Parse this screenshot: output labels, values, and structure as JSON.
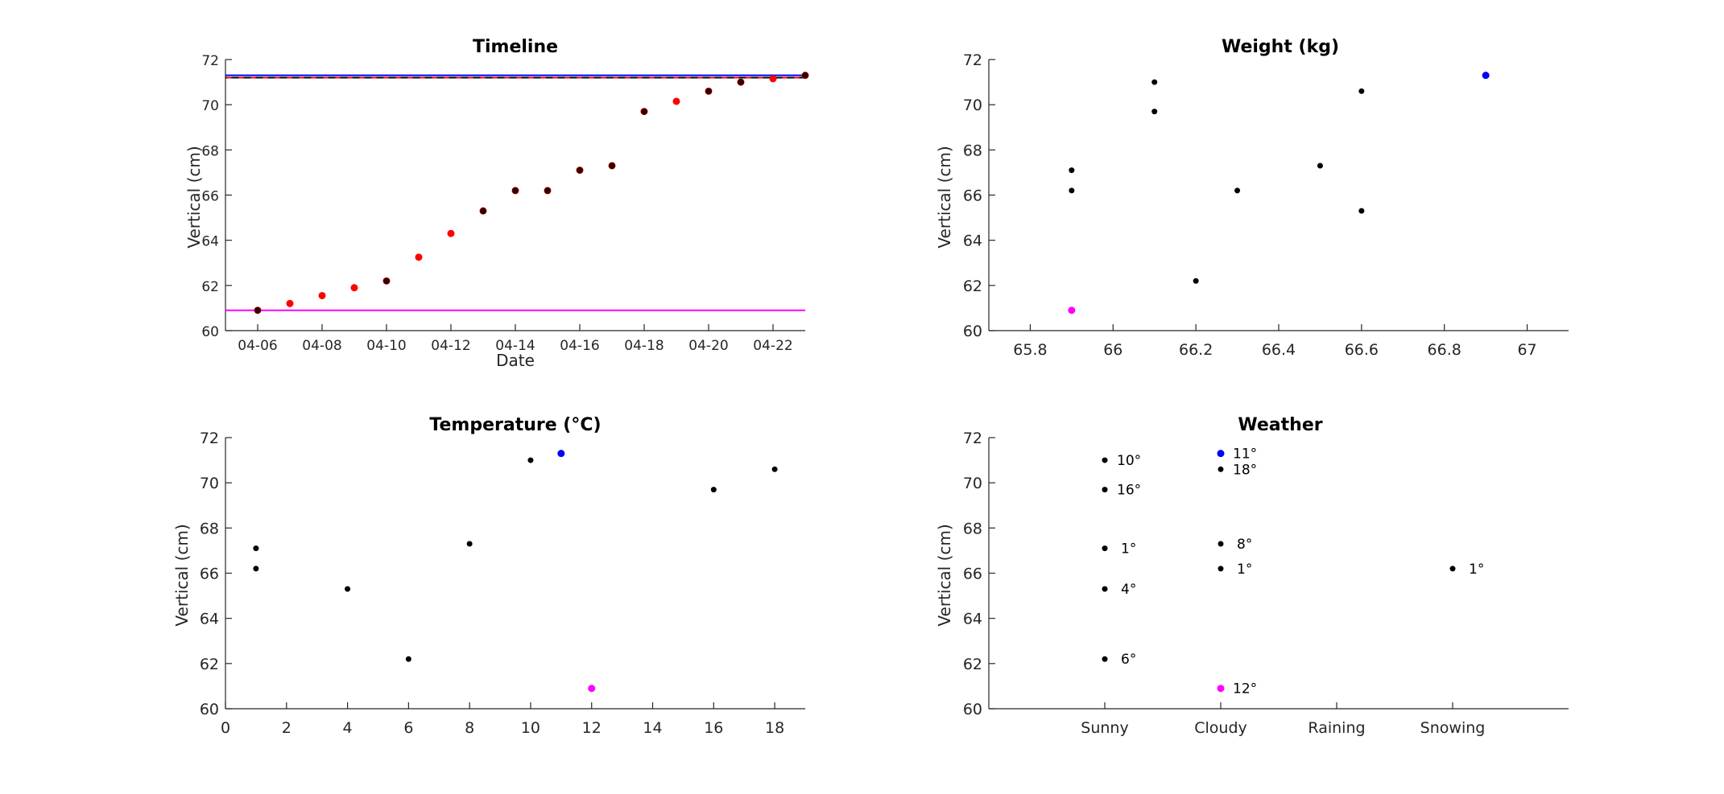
{
  "colors": {
    "point": "#000000",
    "point_alt": "#ff0000",
    "highlight_max": "#0000ff",
    "highlight_min": "#ff00ff",
    "mean_line": "#ff0000"
  },
  "chart_data": [
    {
      "id": "timeline",
      "type": "scatter",
      "title": "Timeline",
      "xlabel": "Date",
      "ylabel": "Vertical (cm)",
      "x_tick_labels": [
        "04-06",
        "04-08",
        "04-10",
        "04-12",
        "04-14",
        "04-16",
        "04-18",
        "04-20",
        "04-22"
      ],
      "x_tick_values": [
        "04-06",
        "04-08",
        "04-10",
        "04-12",
        "04-14",
        "04-16",
        "04-18",
        "04-20",
        "04-22"
      ],
      "xlim": [
        "04-05",
        "04-23"
      ],
      "ylim": [
        60,
        72
      ],
      "y_ticks": [
        60,
        62,
        64,
        66,
        68,
        70,
        72
      ],
      "measured": [
        {
          "x": "04-06",
          "y": 60.9
        },
        {
          "x": "04-10",
          "y": 62.2
        },
        {
          "x": "04-13",
          "y": 65.3
        },
        {
          "x": "04-14",
          "y": 66.2
        },
        {
          "x": "04-15",
          "y": 66.2
        },
        {
          "x": "04-16",
          "y": 67.1
        },
        {
          "x": "04-17",
          "y": 67.3
        },
        {
          "x": "04-18",
          "y": 69.7
        },
        {
          "x": "04-20",
          "y": 70.6
        },
        {
          "x": "04-21",
          "y": 71.0
        },
        {
          "x": "04-23",
          "y": 71.3
        }
      ],
      "fitted": [
        {
          "x": "04-06",
          "y": 60.9
        },
        {
          "x": "04-07",
          "y": 61.2
        },
        {
          "x": "04-08",
          "y": 61.55
        },
        {
          "x": "04-09",
          "y": 61.9
        },
        {
          "x": "04-10",
          "y": 62.2
        },
        {
          "x": "04-11",
          "y": 63.25
        },
        {
          "x": "04-12",
          "y": 64.3
        },
        {
          "x": "04-13",
          "y": 65.3
        },
        {
          "x": "04-14",
          "y": 66.2
        },
        {
          "x": "04-15",
          "y": 66.2
        },
        {
          "x": "04-16",
          "y": 67.1
        },
        {
          "x": "04-17",
          "y": 67.3
        },
        {
          "x": "04-18",
          "y": 69.7
        },
        {
          "x": "04-19",
          "y": 70.15
        },
        {
          "x": "04-20",
          "y": 70.6
        },
        {
          "x": "04-21",
          "y": 71.0
        },
        {
          "x": "04-22",
          "y": 71.15
        },
        {
          "x": "04-23",
          "y": 71.3
        }
      ],
      "hlines": {
        "max": 71.3,
        "dashed": 71.2,
        "min": 60.9
      },
      "grid": false
    },
    {
      "id": "weight",
      "type": "scatter",
      "title": "Weight (kg)",
      "xlabel": "",
      "ylabel": "Vertical (cm)",
      "xlim": [
        65.7,
        67.1
      ],
      "x_ticks": [
        65.8,
        66,
        66.2,
        66.4,
        66.6,
        66.8,
        67
      ],
      "x_tick_labels": [
        "65.8",
        "66",
        "66.2",
        "66.4",
        "66.6",
        "66.8",
        "67"
      ],
      "ylim": [
        60,
        72
      ],
      "y_ticks": [
        60,
        62,
        64,
        66,
        68,
        70,
        72
      ],
      "points": [
        {
          "x": 65.9,
          "y": 67.1
        },
        {
          "x": 65.9,
          "y": 66.2
        },
        {
          "x": 66.1,
          "y": 71.0
        },
        {
          "x": 66.1,
          "y": 69.7
        },
        {
          "x": 66.2,
          "y": 62.2
        },
        {
          "x": 66.3,
          "y": 66.2
        },
        {
          "x": 66.5,
          "y": 67.3
        },
        {
          "x": 66.6,
          "y": 70.6
        },
        {
          "x": 66.6,
          "y": 65.3
        }
      ],
      "max_point": {
        "x": 66.9,
        "y": 71.3
      },
      "min_point": {
        "x": 65.9,
        "y": 60.9
      },
      "grid": false
    },
    {
      "id": "temperature",
      "type": "scatter",
      "title": "Temperature (°C)",
      "xlabel": "",
      "ylabel": "Vertical (cm)",
      "xlim": [
        0,
        19
      ],
      "x_ticks": [
        0,
        2,
        4,
        6,
        8,
        10,
        12,
        14,
        16,
        18
      ],
      "x_tick_labels": [
        "0",
        "2",
        "4",
        "6",
        "8",
        "10",
        "12",
        "14",
        "16",
        "18"
      ],
      "ylim": [
        60,
        72
      ],
      "y_ticks": [
        60,
        62,
        64,
        66,
        68,
        70,
        72
      ],
      "points": [
        {
          "x": 1,
          "y": 67.1
        },
        {
          "x": 1,
          "y": 66.2
        },
        {
          "x": 4,
          "y": 65.3
        },
        {
          "x": 6,
          "y": 62.2
        },
        {
          "x": 8,
          "y": 67.3
        },
        {
          "x": 10,
          "y": 71.0
        },
        {
          "x": 16,
          "y": 69.7
        },
        {
          "x": 18,
          "y": 70.6
        }
      ],
      "max_point": {
        "x": 11,
        "y": 71.3
      },
      "min_point": {
        "x": 12,
        "y": 60.9
      },
      "grid": false
    },
    {
      "id": "weather",
      "type": "scatter",
      "title": "Weather",
      "xlabel": "",
      "ylabel": "Vertical (cm)",
      "categories": [
        "Sunny",
        "Cloudy",
        "Raining",
        "Snowing"
      ],
      "ylim": [
        60,
        72
      ],
      "y_ticks": [
        60,
        62,
        64,
        66,
        68,
        70,
        72
      ],
      "points": [
        {
          "category": "Sunny",
          "y": 71.0,
          "label": "10°"
        },
        {
          "category": "Sunny",
          "y": 69.7,
          "label": "16°"
        },
        {
          "category": "Sunny",
          "y": 67.1,
          "label": "1°"
        },
        {
          "category": "Sunny",
          "y": 65.3,
          "label": "4°"
        },
        {
          "category": "Sunny",
          "y": 62.2,
          "label": "6°"
        },
        {
          "category": "Cloudy",
          "y": 70.6,
          "label": "18°"
        },
        {
          "category": "Cloudy",
          "y": 67.3,
          "label": "8°"
        },
        {
          "category": "Cloudy",
          "y": 66.2,
          "label": "1°"
        },
        {
          "category": "Snowing",
          "y": 66.2,
          "label": "1°"
        }
      ],
      "max_point": {
        "category": "Cloudy",
        "y": 71.3,
        "label": "11°"
      },
      "min_point": {
        "category": "Cloudy",
        "y": 60.9,
        "label": "12°"
      },
      "grid": false
    }
  ]
}
